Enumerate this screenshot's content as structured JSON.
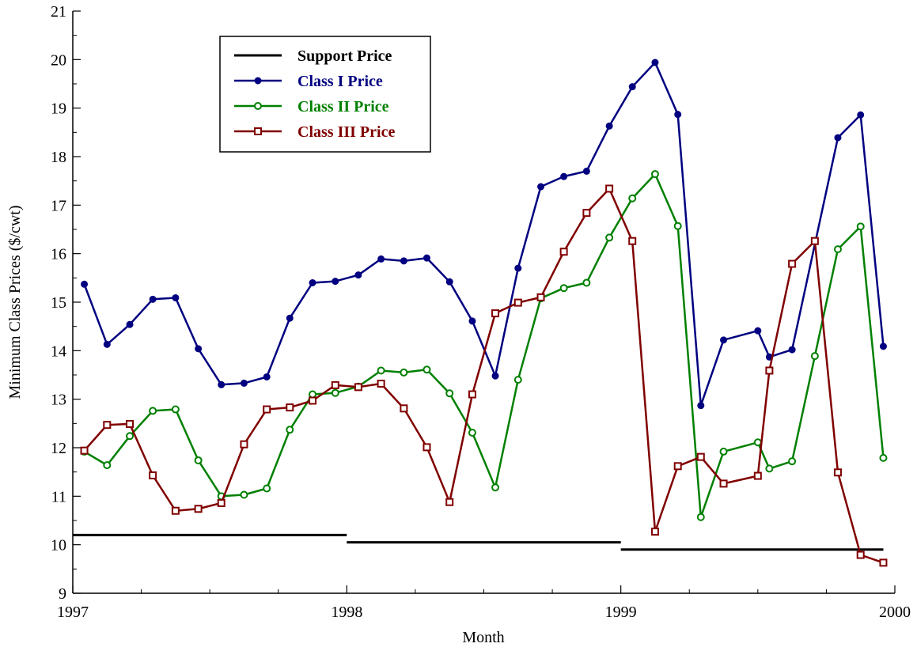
{
  "chart_data": {
    "type": "line",
    "xlabel": "Month",
    "ylabel": "Minimum Class Prices ($/cwt)",
    "xlim": [
      1997,
      2000
    ],
    "ylim": [
      9,
      21
    ],
    "x_ticks": [
      "1997",
      "1998",
      "1999",
      "2000"
    ],
    "y_ticks": [
      "9",
      "10",
      "11",
      "12",
      "13",
      "14",
      "15",
      "16",
      "17",
      "18",
      "19",
      "20",
      "21"
    ],
    "legend_position": "top-left",
    "grid": false,
    "series": [
      {
        "name": "Support Price",
        "color": "#000000",
        "marker": "none",
        "segments": [
          {
            "x": [
              1997.0,
              1998.0
            ],
            "y": [
              10.2,
              10.2
            ]
          },
          {
            "x": [
              1998.0,
              1999.0
            ],
            "y": [
              10.05,
              10.05
            ]
          },
          {
            "x": [
              1999.0,
              1999.958
            ],
            "y": [
              9.9,
              9.9
            ]
          }
        ]
      },
      {
        "name": "Class I Price",
        "color": "#000080",
        "marker": "filled-circle",
        "x": [
          1997.042,
          1997.125,
          1997.208,
          1997.292,
          1997.375,
          1997.458,
          1997.542,
          1997.625,
          1997.708,
          1997.792,
          1997.875,
          1997.958,
          1998.042,
          1998.125,
          1998.208,
          1998.292,
          1998.375,
          1998.458,
          1998.542,
          1998.625,
          1998.708,
          1998.792,
          1998.875,
          1998.958,
          1999.042,
          1999.125,
          1999.208,
          1999.292,
          1999.375,
          1999.5,
          1999.542,
          1999.625,
          1999.792,
          1999.875,
          1999.958
        ],
        "y": [
          15.37,
          14.13,
          14.54,
          15.06,
          15.09,
          14.04,
          13.3,
          13.33,
          13.46,
          14.67,
          15.4,
          15.43,
          15.56,
          15.89,
          15.85,
          15.91,
          15.42,
          14.61,
          13.48,
          15.7,
          17.38,
          17.59,
          17.7,
          18.63,
          19.44,
          19.94,
          18.87,
          12.87,
          14.22,
          14.41,
          13.87,
          14.02,
          18.39,
          18.86,
          14.09
        ]
      },
      {
        "name": "Class II Price",
        "color": "#008000",
        "marker": "open-circle",
        "x": [
          1997.042,
          1997.125,
          1997.208,
          1997.292,
          1997.375,
          1997.458,
          1997.542,
          1997.625,
          1997.708,
          1997.792,
          1997.875,
          1997.958,
          1998.042,
          1998.125,
          1998.208,
          1998.292,
          1998.375,
          1998.458,
          1998.542,
          1998.625,
          1998.708,
          1998.792,
          1998.875,
          1998.958,
          1999.042,
          1999.125,
          1999.208,
          1999.292,
          1999.375,
          1999.5,
          1999.542,
          1999.625,
          1999.708,
          1999.792,
          1999.875,
          1999.958
        ],
        "y": [
          11.92,
          11.64,
          12.24,
          12.76,
          12.79,
          11.74,
          11.0,
          11.03,
          11.16,
          12.37,
          13.1,
          13.13,
          13.26,
          13.59,
          13.55,
          13.61,
          13.12,
          12.31,
          11.18,
          13.4,
          15.08,
          15.29,
          15.4,
          16.33,
          17.14,
          17.64,
          16.57,
          10.57,
          11.92,
          12.11,
          11.57,
          11.72,
          13.89,
          16.09,
          16.56,
          11.79
        ]
      },
      {
        "name": "Class III Price",
        "color": "#800000",
        "marker": "open-square",
        "x": [
          1997.042,
          1997.125,
          1997.208,
          1997.292,
          1997.375,
          1997.458,
          1997.542,
          1997.625,
          1997.708,
          1997.792,
          1997.875,
          1997.958,
          1998.042,
          1998.125,
          1998.208,
          1998.292,
          1998.375,
          1998.458,
          1998.542,
          1998.625,
          1998.708,
          1998.792,
          1998.875,
          1998.958,
          1999.042,
          1999.125,
          1999.208,
          1999.292,
          1999.375,
          1999.5,
          1999.542,
          1999.625,
          1999.708,
          1999.792,
          1999.875,
          1999.958
        ],
        "y": [
          11.94,
          12.47,
          12.49,
          11.43,
          10.7,
          10.74,
          10.86,
          12.07,
          12.79,
          12.83,
          12.97,
          13.29,
          13.25,
          13.32,
          12.81,
          12.01,
          10.88,
          13.1,
          14.77,
          14.99,
          15.1,
          16.04,
          16.84,
          17.34,
          16.26,
          10.27,
          11.62,
          11.81,
          11.26,
          11.42,
          13.59,
          15.79,
          16.26,
          11.49,
          9.79,
          9.63
        ]
      }
    ]
  }
}
